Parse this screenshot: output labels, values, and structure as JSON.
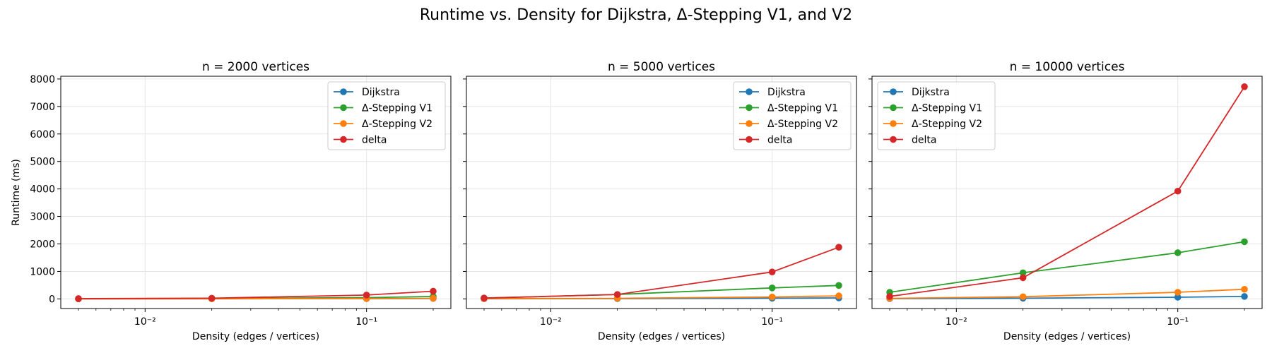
{
  "figure": {
    "title": "Runtime vs. Density for Dijkstra, Δ-Stepping V1, and V2"
  },
  "colors": {
    "Dijkstra": "#1f77b4",
    "Δ-Stepping V1": "#2ca02c",
    "Δ-Stepping V2": "#ff7f0e",
    "delta": "#d62728",
    "grid": "#e6e6e6",
    "axis": "#000000"
  },
  "chart_data": [
    {
      "type": "line",
      "title": "n = 2000 vertices",
      "xlabel": "Density (edges / vertices)",
      "ylabel": "Runtime (ms)",
      "xscale": "log",
      "x": [
        0.005,
        0.02,
        0.1,
        0.2
      ],
      "xticks": [
        {
          "value": 0.01,
          "label": "10⁻²"
        },
        {
          "value": 0.1,
          "label": "10⁻¹"
        }
      ],
      "ylim": [
        -350,
        8100
      ],
      "yticks": [
        0,
        1000,
        2000,
        3000,
        4000,
        5000,
        6000,
        7000,
        8000
      ],
      "grid": true,
      "legend": "upper right",
      "series": [
        {
          "name": "Dijkstra",
          "values": [
            2,
            4,
            10,
            15
          ]
        },
        {
          "name": "Δ-Stepping V1",
          "values": [
            8,
            20,
            45,
            90
          ]
        },
        {
          "name": "Δ-Stepping V2",
          "values": [
            3,
            5,
            12,
            20
          ]
        },
        {
          "name": "delta",
          "values": [
            10,
            25,
            140,
            280
          ]
        }
      ]
    },
    {
      "type": "line",
      "title": "n = 5000 vertices",
      "xlabel": "Density (edges / vertices)",
      "ylabel": "",
      "xscale": "log",
      "x": [
        0.005,
        0.02,
        0.1,
        0.2
      ],
      "xticks": [
        {
          "value": 0.01,
          "label": "10⁻²"
        },
        {
          "value": 0.1,
          "label": "10⁻¹"
        }
      ],
      "ylim": [
        -350,
        8100
      ],
      "yticks": [
        0,
        1000,
        2000,
        3000,
        4000,
        5000,
        6000,
        7000,
        8000
      ],
      "grid": true,
      "legend": "upper right",
      "series": [
        {
          "name": "Dijkstra",
          "values": [
            5,
            10,
            25,
            35
          ]
        },
        {
          "name": "Δ-Stepping V1",
          "values": [
            30,
            160,
            400,
            490
          ]
        },
        {
          "name": "Δ-Stepping V2",
          "values": [
            10,
            20,
            70,
            110
          ]
        },
        {
          "name": "delta",
          "values": [
            30,
            160,
            980,
            1880
          ]
        }
      ]
    },
    {
      "type": "line",
      "title": "n = 10000 vertices",
      "xlabel": "Density (edges / vertices)",
      "ylabel": "",
      "xscale": "log",
      "x": [
        0.005,
        0.02,
        0.1,
        0.2
      ],
      "xticks": [
        {
          "value": 0.01,
          "label": "10⁻²"
        },
        {
          "value": 0.1,
          "label": "10⁻¹"
        }
      ],
      "ylim": [
        -350,
        8100
      ],
      "yticks": [
        0,
        1000,
        2000,
        3000,
        4000,
        5000,
        6000,
        7000,
        8000
      ],
      "grid": true,
      "legend": "upper left",
      "series": [
        {
          "name": "Dijkstra",
          "values": [
            10,
            25,
            60,
            90
          ]
        },
        {
          "name": "Δ-Stepping V1",
          "values": [
            240,
            950,
            1680,
            2080
          ]
        },
        {
          "name": "Δ-Stepping V2",
          "values": [
            20,
            80,
            240,
            350
          ]
        },
        {
          "name": "delta",
          "values": [
            90,
            770,
            3920,
            7720
          ]
        }
      ]
    }
  ]
}
